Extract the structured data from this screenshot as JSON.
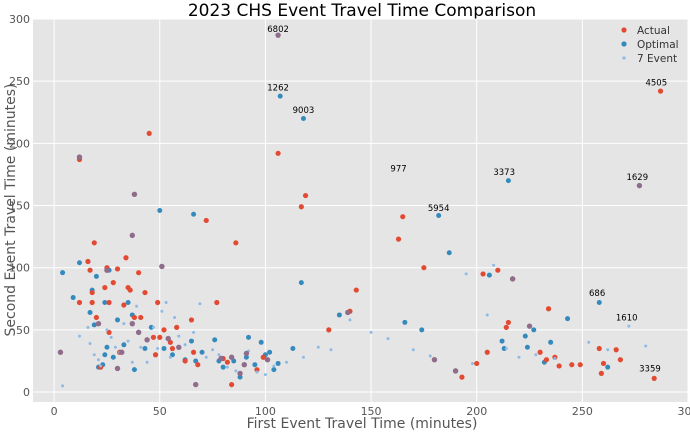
{
  "chart_data": {
    "type": "scatter",
    "title": "2023 CHS Event Travel Time Comparison",
    "xlabel": "First Event Travel Time (minutes)",
    "ylabel": "Second Event Travel Time (minutes)",
    "xlim": [
      -10,
      300
    ],
    "ylim": [
      -8,
      300
    ],
    "xticks": [
      0,
      50,
      100,
      150,
      200,
      250,
      300
    ],
    "yticks": [
      0,
      50,
      100,
      150,
      200,
      250,
      300
    ],
    "grid": true,
    "legend_position": "top-right",
    "series": [
      {
        "name": "Actual",
        "color": "#E24A33",
        "points": [
          [
            12,
            72
          ],
          [
            12,
            187
          ],
          [
            16,
            105
          ],
          [
            17,
            98
          ],
          [
            18,
            72
          ],
          [
            18,
            80
          ],
          [
            19,
            120
          ],
          [
            20,
            60
          ],
          [
            22,
            20
          ],
          [
            24,
            84
          ],
          [
            25,
            100
          ],
          [
            26,
            72
          ],
          [
            26,
            48
          ],
          [
            28,
            88
          ],
          [
            30,
            99
          ],
          [
            31,
            32
          ],
          [
            33,
            70
          ],
          [
            34,
            108
          ],
          [
            35,
            84
          ],
          [
            36,
            82
          ],
          [
            38,
            60
          ],
          [
            40,
            96
          ],
          [
            41,
            60
          ],
          [
            43,
            80
          ],
          [
            45,
            208
          ],
          [
            47,
            44
          ],
          [
            48,
            30
          ],
          [
            49,
            72
          ],
          [
            50,
            44
          ],
          [
            52,
            50
          ],
          [
            55,
            40
          ],
          [
            56,
            35
          ],
          [
            58,
            52
          ],
          [
            62,
            25
          ],
          [
            65,
            58
          ],
          [
            66,
            32
          ],
          [
            68,
            22
          ],
          [
            72,
            138
          ],
          [
            77,
            72
          ],
          [
            80,
            27
          ],
          [
            82,
            24
          ],
          [
            84,
            6
          ],
          [
            86,
            120
          ],
          [
            96,
            18
          ],
          [
            99,
            28
          ],
          [
            106,
            192
          ],
          [
            117,
            149
          ],
          [
            119,
            158
          ],
          [
            130,
            50
          ],
          [
            140,
            65
          ],
          [
            143,
            82
          ],
          [
            163,
            123
          ],
          [
            165,
            141
          ],
          [
            175,
            100
          ],
          [
            190,
            17
          ],
          [
            193,
            12
          ],
          [
            200,
            23
          ],
          [
            203,
            95
          ],
          [
            205,
            32
          ],
          [
            210,
            98
          ],
          [
            214,
            52
          ],
          [
            215,
            56
          ],
          [
            217,
            91
          ],
          [
            230,
            32
          ],
          [
            233,
            26
          ],
          [
            234,
            67
          ],
          [
            237,
            28
          ],
          [
            239,
            21
          ],
          [
            245,
            22
          ],
          [
            249,
            22
          ],
          [
            258,
            35
          ],
          [
            259,
            15
          ],
          [
            260,
            23
          ],
          [
            266,
            34
          ],
          [
            268,
            26
          ],
          [
            284,
            11
          ],
          [
            287,
            242
          ]
        ]
      },
      {
        "name": "Optimal",
        "color": "#348ABD",
        "points": [
          [
            4,
            96
          ],
          [
            9,
            76
          ],
          [
            12,
            104
          ],
          [
            16,
            105
          ],
          [
            17,
            64
          ],
          [
            18,
            82
          ],
          [
            19,
            54
          ],
          [
            20,
            93
          ],
          [
            21,
            20
          ],
          [
            23,
            22
          ],
          [
            24,
            30
          ],
          [
            24,
            72
          ],
          [
            25,
            36
          ],
          [
            26,
            98
          ],
          [
            28,
            28
          ],
          [
            30,
            58
          ],
          [
            33,
            38
          ],
          [
            35,
            72
          ],
          [
            37,
            62
          ],
          [
            38,
            18
          ],
          [
            40,
            48
          ],
          [
            43,
            35
          ],
          [
            46,
            52
          ],
          [
            50,
            146
          ],
          [
            51,
            101
          ],
          [
            52,
            35
          ],
          [
            56,
            30
          ],
          [
            62,
            26
          ],
          [
            65,
            41
          ],
          [
            66,
            143
          ],
          [
            67,
            25
          ],
          [
            70,
            32
          ],
          [
            76,
            42
          ],
          [
            78,
            25
          ],
          [
            80,
            20
          ],
          [
            85,
            25
          ],
          [
            88,
            12
          ],
          [
            91,
            28
          ],
          [
            92,
            44
          ],
          [
            95,
            22
          ],
          [
            98,
            40
          ],
          [
            100,
            30
          ],
          [
            102,
            32
          ],
          [
            104,
            18
          ],
          [
            106,
            23
          ],
          [
            107,
            238
          ],
          [
            113,
            35
          ],
          [
            117,
            88
          ],
          [
            118,
            220
          ],
          [
            135,
            62
          ],
          [
            166,
            56
          ],
          [
            174,
            50
          ],
          [
            182,
            142
          ],
          [
            187,
            112
          ],
          [
            206,
            94
          ],
          [
            212,
            41
          ],
          [
            213,
            35
          ],
          [
            215,
            170
          ],
          [
            223,
            45
          ],
          [
            224,
            36
          ],
          [
            227,
            50
          ],
          [
            232,
            24
          ],
          [
            235,
            40
          ],
          [
            243,
            59
          ],
          [
            258,
            72
          ],
          [
            262,
            20
          ]
        ]
      },
      {
        "name": "7 Event",
        "color": "#8EBAE5",
        "points": [
          [
            4,
            5
          ],
          [
            12,
            45
          ],
          [
            16,
            52
          ],
          [
            17,
            39
          ],
          [
            19,
            30
          ],
          [
            21,
            26
          ],
          [
            22,
            21
          ],
          [
            25,
            50
          ],
          [
            27,
            44
          ],
          [
            29,
            36
          ],
          [
            31,
            32
          ],
          [
            33,
            55
          ],
          [
            35,
            41
          ],
          [
            37,
            24
          ],
          [
            39,
            69
          ],
          [
            41,
            36
          ],
          [
            44,
            24
          ],
          [
            47,
            52
          ],
          [
            49,
            35
          ],
          [
            51,
            65
          ],
          [
            53,
            72
          ],
          [
            55,
            28
          ],
          [
            57,
            60
          ],
          [
            59,
            45
          ],
          [
            62,
            38
          ],
          [
            66,
            48
          ],
          [
            69,
            71
          ],
          [
            72,
            28
          ],
          [
            75,
            34
          ],
          [
            78,
            30
          ],
          [
            82,
            20
          ],
          [
            86,
            17
          ],
          [
            92,
            33
          ],
          [
            96,
            16
          ],
          [
            100,
            14
          ],
          [
            104,
            21
          ],
          [
            110,
            24
          ],
          [
            118,
            28
          ],
          [
            125,
            36
          ],
          [
            131,
            34
          ],
          [
            140,
            58
          ],
          [
            150,
            48
          ],
          [
            158,
            43
          ],
          [
            170,
            34
          ],
          [
            178,
            29
          ],
          [
            195,
            95
          ],
          [
            198,
            23
          ],
          [
            205,
            62
          ],
          [
            208,
            102
          ],
          [
            214,
            35
          ],
          [
            220,
            28
          ],
          [
            228,
            30
          ],
          [
            237,
            27
          ],
          [
            253,
            40
          ],
          [
            262,
            34
          ],
          [
            272,
            53
          ],
          [
            280,
            37
          ]
        ]
      }
    ],
    "overlap_points": [
      [
        3,
        32
      ],
      [
        12,
        189
      ],
      [
        21,
        55
      ],
      [
        25,
        98
      ],
      [
        30,
        19
      ],
      [
        32,
        32
      ],
      [
        37,
        55
      ],
      [
        37,
        126
      ],
      [
        38,
        159
      ],
      [
        40,
        48
      ],
      [
        44,
        42
      ],
      [
        51,
        101
      ],
      [
        54,
        43
      ],
      [
        59,
        36
      ],
      [
        67,
        6
      ],
      [
        79,
        27
      ],
      [
        84,
        28
      ],
      [
        88,
        15
      ],
      [
        90,
        22
      ],
      [
        91,
        31
      ],
      [
        101,
        26
      ],
      [
        106,
        287
      ],
      [
        139,
        64
      ],
      [
        180,
        26
      ],
      [
        190,
        17
      ],
      [
        217,
        91
      ],
      [
        225,
        53
      ],
      [
        277,
        166
      ]
    ],
    "annotations": [
      {
        "text": "6802",
        "x": 106,
        "y": 287
      },
      {
        "text": "1262",
        "x": 106,
        "y": 240
      },
      {
        "text": "9003",
        "x": 118,
        "y": 222
      },
      {
        "text": "4505",
        "x": 285,
        "y": 244
      },
      {
        "text": "977",
        "x": 163,
        "y": 175
      },
      {
        "text": "3373",
        "x": 213,
        "y": 172
      },
      {
        "text": "1629",
        "x": 276,
        "y": 168
      },
      {
        "text": "5954",
        "x": 182,
        "y": 143
      },
      {
        "text": "686",
        "x": 257,
        "y": 75
      },
      {
        "text": "1610",
        "x": 271,
        "y": 55
      },
      {
        "text": "3359",
        "x": 282,
        "y": 14
      }
    ]
  }
}
